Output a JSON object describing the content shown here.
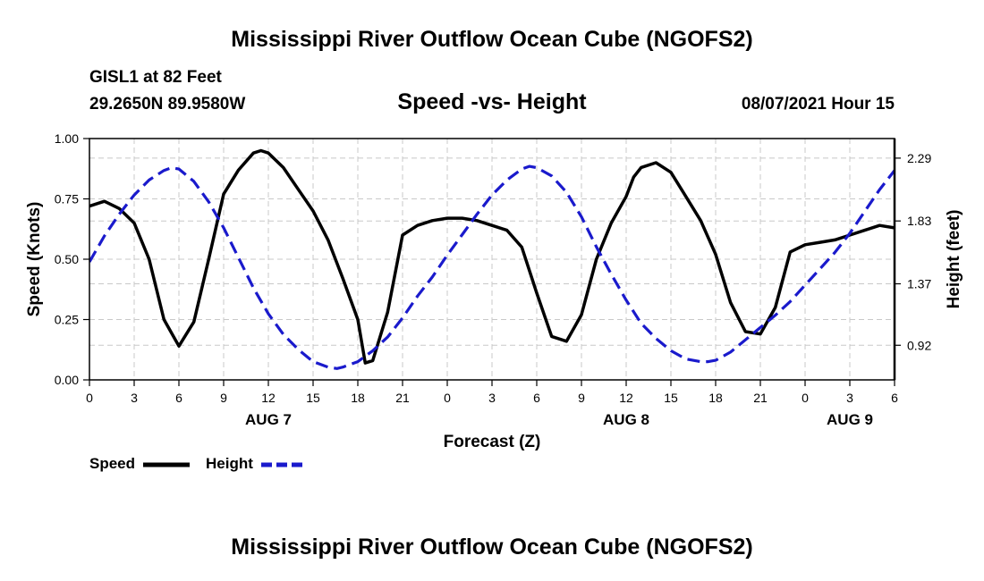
{
  "header": {
    "title": "Mississippi River Outflow Ocean Cube (NGOFS2)",
    "station_line1": "GISL1 at 82 Feet",
    "station_line2": "29.2650N  89.9580W",
    "subtitle": "Speed -vs- Height",
    "datetime": "08/07/2021 Hour 15"
  },
  "footer": {
    "title": "Mississippi River Outflow Ocean Cube (NGOFS2)"
  },
  "legend": {
    "speed_label": "Speed",
    "height_label": "Height"
  },
  "colors": {
    "speed": "#000000",
    "height": "#1a1acc",
    "grid": "#c8c8c8"
  },
  "chart_data": {
    "type": "line",
    "title": "Speed -vs- Height",
    "xlabel": "Forecast (Z)",
    "ylabel": "Speed (Knots)",
    "y2label": "Height (feet)",
    "xlim": [
      0,
      54
    ],
    "ylim": [
      0,
      1.0
    ],
    "y2lim": [
      0.6666,
      2.4333
    ],
    "x_ticks": [
      0,
      3,
      6,
      9,
      12,
      15,
      18,
      21,
      24,
      27,
      30,
      33,
      36,
      39,
      42,
      45,
      48,
      51,
      54
    ],
    "x_tick_labels": [
      "0",
      "3",
      "6",
      "9",
      "12",
      "15",
      "18",
      "21",
      "0",
      "3",
      "6",
      "9",
      "12",
      "15",
      "18",
      "21",
      "0",
      "3",
      "6"
    ],
    "day_labels": [
      {
        "x": 12,
        "label": "AUG 7"
      },
      {
        "x": 36,
        "label": "AUG 8"
      },
      {
        "x": 51,
        "label": "AUG 9"
      }
    ],
    "y_ticks": [
      0,
      0.25,
      0.5,
      0.75,
      1.0
    ],
    "y_tick_labels": [
      "0.00",
      "0.25",
      "0.50",
      "0.75",
      "1.00"
    ],
    "y2_ticks": [
      0.92,
      1.37,
      1.83,
      2.29
    ],
    "y2_tick_labels": [
      "0.92",
      "1.37",
      "1.83",
      "2.29"
    ],
    "grid": true,
    "series": [
      {
        "name": "Speed",
        "axis": "left",
        "style": "solid",
        "x": [
          0,
          1,
          2,
          3,
          4,
          5,
          6,
          7,
          8,
          9,
          10,
          11,
          11.5,
          12,
          13,
          14,
          15,
          16,
          17,
          18,
          18.5,
          19,
          20,
          21,
          22,
          23,
          24,
          25,
          26,
          27,
          28,
          29,
          30,
          31,
          32,
          33,
          34,
          35,
          36,
          36.5,
          37,
          38,
          39,
          40,
          41,
          42,
          43,
          44,
          45,
          46,
          47,
          48,
          49,
          50,
          51,
          52,
          53,
          54
        ],
        "values": [
          0.72,
          0.74,
          0.71,
          0.65,
          0.5,
          0.25,
          0.14,
          0.24,
          0.5,
          0.77,
          0.87,
          0.94,
          0.95,
          0.94,
          0.88,
          0.79,
          0.7,
          0.58,
          0.42,
          0.25,
          0.07,
          0.08,
          0.28,
          0.6,
          0.64,
          0.66,
          0.67,
          0.67,
          0.66,
          0.64,
          0.62,
          0.55,
          0.36,
          0.18,
          0.16,
          0.27,
          0.5,
          0.65,
          0.76,
          0.84,
          0.88,
          0.9,
          0.86,
          0.76,
          0.66,
          0.52,
          0.32,
          0.2,
          0.19,
          0.3,
          0.53,
          0.56,
          0.57,
          0.58,
          0.6,
          0.62,
          0.64,
          0.63
        ]
      },
      {
        "name": "Height",
        "axis": "right",
        "style": "dashed",
        "x": [
          0,
          1,
          2,
          3,
          4,
          5,
          5.5,
          6,
          7,
          8,
          9,
          10,
          11,
          12,
          13,
          14,
          15,
          16,
          16.6,
          17,
          18,
          19,
          20,
          21,
          22,
          23,
          24,
          25,
          26,
          27,
          28,
          29,
          29.5,
          30,
          31,
          32,
          33,
          34,
          35,
          36,
          37,
          38,
          39,
          40,
          41,
          41.5,
          42,
          43,
          44,
          45,
          46,
          47,
          48,
          49,
          50,
          51,
          52,
          53,
          54
        ],
        "values": [
          1.53,
          1.72,
          1.88,
          2.02,
          2.13,
          2.2,
          2.22,
          2.21,
          2.12,
          1.97,
          1.78,
          1.56,
          1.34,
          1.15,
          1.0,
          0.89,
          0.8,
          0.76,
          0.75,
          0.76,
          0.8,
          0.88,
          0.98,
          1.12,
          1.28,
          1.42,
          1.58,
          1.73,
          1.88,
          2.02,
          2.13,
          2.21,
          2.23,
          2.22,
          2.16,
          2.04,
          1.86,
          1.64,
          1.44,
          1.25,
          1.08,
          0.97,
          0.88,
          0.82,
          0.8,
          0.8,
          0.81,
          0.87,
          0.96,
          1.05,
          1.14,
          1.24,
          1.36,
          1.48,
          1.6,
          1.74,
          1.9,
          2.06,
          2.2
        ]
      }
    ]
  }
}
